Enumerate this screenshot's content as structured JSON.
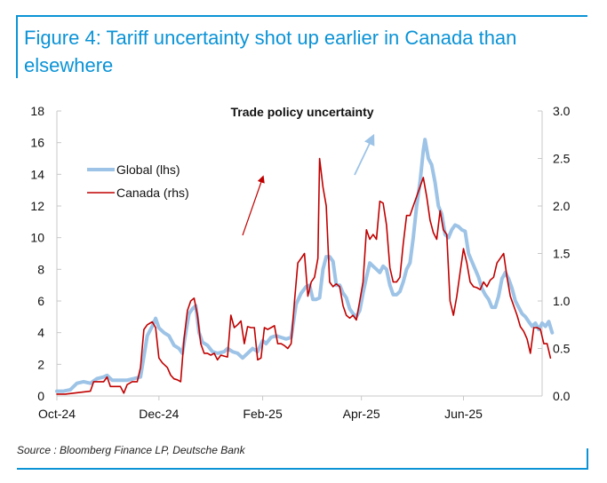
{
  "figure": {
    "title": "Figure 4: Tariff uncertainty shot up earlier in Canada than elsewhere",
    "source": "Source : Bloomberg Finance LP, Deutsche Bank",
    "accent_color": "#0b93d6"
  },
  "chart_data": {
    "type": "line",
    "title": "Trade policy uncertainty",
    "xlabel": "",
    "ylabel_left": "",
    "ylabel_right": "",
    "x_unit": "days since 1-Oct-2024",
    "x_ticks": [
      {
        "label": "Oct-24",
        "x": 0
      },
      {
        "label": "Dec-24",
        "x": 61
      },
      {
        "label": "Feb-25",
        "x": 123
      },
      {
        "label": "Apr-25",
        "x": 182
      },
      {
        "label": "Jun-25",
        "x": 243
      }
    ],
    "xlim": [
      0,
      290
    ],
    "ylim_left": [
      0,
      18
    ],
    "yticks_left": [
      "0",
      "2",
      "4",
      "6",
      "8",
      "10",
      "12",
      "14",
      "16",
      "18"
    ],
    "ylim_right": [
      0,
      3.0
    ],
    "yticks_right": [
      "0.0",
      "0.5",
      "1.0",
      "1.5",
      "2.0",
      "2.5",
      "3.0"
    ],
    "grid": false,
    "legend_position": "upper-left",
    "series": [
      {
        "name": "Global (lhs)",
        "axis": "left",
        "color": "#9dc3e6",
        "points": [
          [
            0,
            0.3
          ],
          [
            4,
            0.3
          ],
          [
            8,
            0.4
          ],
          [
            12,
            0.8
          ],
          [
            16,
            0.9
          ],
          [
            20,
            0.8
          ],
          [
            24,
            1.1
          ],
          [
            28,
            1.2
          ],
          [
            30,
            1.3
          ],
          [
            33,
            1.0
          ],
          [
            37,
            1.0
          ],
          [
            42,
            1.0
          ],
          [
            46,
            1.1
          ],
          [
            50,
            1.2
          ],
          [
            52,
            2.5
          ],
          [
            54,
            3.8
          ],
          [
            57,
            4.4
          ],
          [
            59,
            4.9
          ],
          [
            61,
            4.3
          ],
          [
            64,
            4.0
          ],
          [
            67,
            3.8
          ],
          [
            70,
            3.2
          ],
          [
            73,
            3.0
          ],
          [
            75,
            2.7
          ],
          [
            77,
            4.0
          ],
          [
            79,
            5.2
          ],
          [
            81,
            5.5
          ],
          [
            83,
            5.7
          ],
          [
            85,
            4.0
          ],
          [
            87,
            3.4
          ],
          [
            90,
            3.2
          ],
          [
            93,
            2.8
          ],
          [
            96,
            2.7
          ],
          [
            100,
            2.8
          ],
          [
            102,
            3.0
          ],
          [
            105,
            2.8
          ],
          [
            108,
            2.7
          ],
          [
            111,
            2.4
          ],
          [
            114,
            2.7
          ],
          [
            117,
            3.0
          ],
          [
            120,
            2.8
          ],
          [
            123,
            3.5
          ],
          [
            125,
            3.3
          ],
          [
            128,
            3.7
          ],
          [
            131,
            3.8
          ],
          [
            134,
            3.7
          ],
          [
            137,
            3.6
          ],
          [
            140,
            3.7
          ],
          [
            143,
            5.8
          ],
          [
            146,
            6.5
          ],
          [
            149,
            6.9
          ],
          [
            151,
            7.0
          ],
          [
            153,
            6.1
          ],
          [
            155,
            6.1
          ],
          [
            157,
            6.2
          ],
          [
            159,
            8.0
          ],
          [
            161,
            8.8
          ],
          [
            163,
            8.8
          ],
          [
            165,
            8.5
          ],
          [
            167,
            7.0
          ],
          [
            169,
            7.0
          ],
          [
            171,
            6.5
          ],
          [
            173,
            6.2
          ],
          [
            175,
            5.5
          ],
          [
            177,
            5.2
          ],
          [
            179,
            5.0
          ],
          [
            181,
            5.4
          ],
          [
            183,
            6.5
          ],
          [
            185,
            7.5
          ],
          [
            187,
            8.4
          ],
          [
            189,
            8.2
          ],
          [
            191,
            8.0
          ],
          [
            193,
            7.8
          ],
          [
            195,
            8.2
          ],
          [
            197,
            8.0
          ],
          [
            199,
            7.0
          ],
          [
            201,
            6.4
          ],
          [
            203,
            6.4
          ],
          [
            205,
            6.6
          ],
          [
            207,
            7.2
          ],
          [
            209,
            8.0
          ],
          [
            211,
            8.4
          ],
          [
            213,
            10.0
          ],
          [
            215,
            12.0
          ],
          [
            217,
            13.5
          ],
          [
            219,
            15.5
          ],
          [
            220,
            16.2
          ],
          [
            222,
            15.0
          ],
          [
            224,
            14.6
          ],
          [
            226,
            13.5
          ],
          [
            228,
            12.0
          ],
          [
            230,
            11.5
          ],
          [
            232,
            10.2
          ],
          [
            234,
            10.0
          ],
          [
            236,
            10.5
          ],
          [
            238,
            10.8
          ],
          [
            240,
            10.7
          ],
          [
            242,
            10.5
          ],
          [
            244,
            10.4
          ],
          [
            246,
            9.0
          ],
          [
            248,
            8.5
          ],
          [
            250,
            8.0
          ],
          [
            252,
            7.5
          ],
          [
            254,
            6.8
          ],
          [
            256,
            6.4
          ],
          [
            258,
            6.1
          ],
          [
            260,
            5.6
          ],
          [
            262,
            5.6
          ],
          [
            264,
            6.3
          ],
          [
            266,
            7.4
          ],
          [
            268,
            7.8
          ],
          [
            270,
            7.4
          ],
          [
            272,
            6.8
          ],
          [
            274,
            6.0
          ],
          [
            276,
            5.6
          ],
          [
            278,
            5.2
          ],
          [
            280,
            5.0
          ],
          [
            282,
            4.7
          ],
          [
            284,
            4.4
          ],
          [
            286,
            4.6
          ],
          [
            288,
            4.2
          ],
          [
            290,
            4.6
          ],
          [
            292,
            4.4
          ],
          [
            294,
            4.7
          ],
          [
            296,
            4.0
          ]
        ]
      },
      {
        "name": "Canada (rhs)",
        "axis": "right",
        "color": "#c00000",
        "points": [
          [
            0,
            0.02
          ],
          [
            5,
            0.02
          ],
          [
            10,
            0.03
          ],
          [
            15,
            0.04
          ],
          [
            20,
            0.05
          ],
          [
            22,
            0.15
          ],
          [
            25,
            0.15
          ],
          [
            28,
            0.15
          ],
          [
            30,
            0.2
          ],
          [
            32,
            0.1
          ],
          [
            35,
            0.1
          ],
          [
            38,
            0.1
          ],
          [
            40,
            0.03
          ],
          [
            42,
            0.12
          ],
          [
            45,
            0.15
          ],
          [
            48,
            0.15
          ],
          [
            50,
            0.3
          ],
          [
            52,
            0.7
          ],
          [
            54,
            0.75
          ],
          [
            57,
            0.78
          ],
          [
            59,
            0.72
          ],
          [
            61,
            0.4
          ],
          [
            63,
            0.35
          ],
          [
            66,
            0.3
          ],
          [
            68,
            0.22
          ],
          [
            70,
            0.18
          ],
          [
            72,
            0.17
          ],
          [
            74,
            0.15
          ],
          [
            76,
            0.6
          ],
          [
            78,
            0.9
          ],
          [
            80,
            1.0
          ],
          [
            82,
            1.03
          ],
          [
            84,
            0.85
          ],
          [
            86,
            0.55
          ],
          [
            88,
            0.45
          ],
          [
            90,
            0.45
          ],
          [
            92,
            0.43
          ],
          [
            94,
            0.45
          ],
          [
            96,
            0.38
          ],
          [
            98,
            0.43
          ],
          [
            100,
            0.42
          ],
          [
            102,
            0.41
          ],
          [
            104,
            0.85
          ],
          [
            106,
            0.72
          ],
          [
            108,
            0.75
          ],
          [
            110,
            0.79
          ],
          [
            112,
            0.55
          ],
          [
            114,
            0.73
          ],
          [
            116,
            0.72
          ],
          [
            118,
            0.72
          ],
          [
            120,
            0.38
          ],
          [
            122,
            0.4
          ],
          [
            124,
            0.72
          ],
          [
            126,
            0.7
          ],
          [
            128,
            0.72
          ],
          [
            130,
            0.74
          ],
          [
            132,
            0.55
          ],
          [
            134,
            0.55
          ],
          [
            136,
            0.53
          ],
          [
            138,
            0.5
          ],
          [
            140,
            0.55
          ],
          [
            142,
            1.0
          ],
          [
            144,
            1.4
          ],
          [
            146,
            1.45
          ],
          [
            148,
            1.5
          ],
          [
            150,
            1.05
          ],
          [
            152,
            1.2
          ],
          [
            154,
            1.25
          ],
          [
            156,
            1.45
          ],
          [
            157,
            2.5
          ],
          [
            159,
            2.2
          ],
          [
            161,
            2.0
          ],
          [
            163,
            1.2
          ],
          [
            165,
            1.15
          ],
          [
            167,
            1.18
          ],
          [
            169,
            1.15
          ],
          [
            171,
            0.95
          ],
          [
            173,
            0.85
          ],
          [
            175,
            0.82
          ],
          [
            177,
            0.85
          ],
          [
            179,
            0.8
          ],
          [
            181,
            1.0
          ],
          [
            183,
            1.2
          ],
          [
            185,
            1.75
          ],
          [
            187,
            1.65
          ],
          [
            189,
            1.7
          ],
          [
            191,
            1.65
          ],
          [
            193,
            2.05
          ],
          [
            195,
            2.03
          ],
          [
            197,
            1.8
          ],
          [
            199,
            1.35
          ],
          [
            201,
            1.2
          ],
          [
            203,
            1.2
          ],
          [
            205,
            1.25
          ],
          [
            207,
            1.6
          ],
          [
            209,
            1.9
          ],
          [
            211,
            1.9
          ],
          [
            213,
            2.0
          ],
          [
            215,
            2.1
          ],
          [
            217,
            2.2
          ],
          [
            219,
            2.3
          ],
          [
            221,
            2.1
          ],
          [
            223,
            1.85
          ],
          [
            225,
            1.72
          ],
          [
            227,
            1.65
          ],
          [
            229,
            1.95
          ],
          [
            231,
            1.75
          ],
          [
            233,
            1.7
          ],
          [
            235,
            1.0
          ],
          [
            237,
            0.85
          ],
          [
            239,
            1.05
          ],
          [
            241,
            1.3
          ],
          [
            243,
            1.55
          ],
          [
            245,
            1.4
          ],
          [
            247,
            1.2
          ],
          [
            249,
            1.15
          ],
          [
            251,
            1.14
          ],
          [
            253,
            1.12
          ],
          [
            255,
            1.2
          ],
          [
            257,
            1.15
          ],
          [
            259,
            1.22
          ],
          [
            261,
            1.25
          ],
          [
            263,
            1.4
          ],
          [
            265,
            1.45
          ],
          [
            267,
            1.5
          ],
          [
            269,
            1.25
          ],
          [
            271,
            1.05
          ],
          [
            273,
            0.95
          ],
          [
            275,
            0.85
          ],
          [
            277,
            0.73
          ],
          [
            279,
            0.68
          ],
          [
            281,
            0.6
          ],
          [
            283,
            0.45
          ],
          [
            285,
            0.72
          ],
          [
            287,
            0.72
          ],
          [
            289,
            0.7
          ],
          [
            291,
            0.55
          ],
          [
            293,
            0.55
          ],
          [
            295,
            0.4
          ]
        ]
      }
    ],
    "annotations": [
      {
        "type": "arrow",
        "color": "#c00000",
        "description": "Canada spike ahead of Feb-25"
      },
      {
        "type": "arrow",
        "color": "#9dc3e6",
        "description": "Global spike in Apr-25"
      }
    ]
  }
}
